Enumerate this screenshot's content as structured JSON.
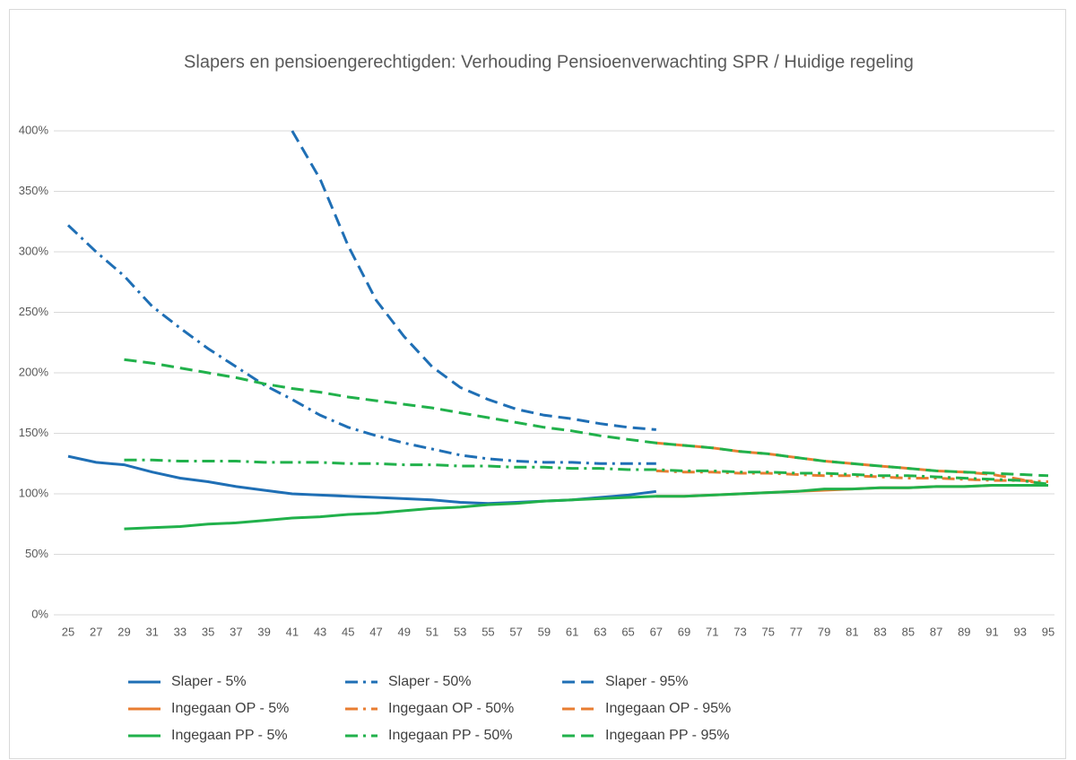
{
  "chart_data": {
    "type": "line",
    "title": "Slapers en pensioengerechtigden: Verhouding Pensioenverwachting SPR / Huidige regeling",
    "x": [
      25,
      27,
      29,
      31,
      33,
      35,
      37,
      39,
      41,
      43,
      45,
      47,
      49,
      51,
      53,
      55,
      57,
      59,
      61,
      63,
      65,
      67,
      69,
      71,
      73,
      75,
      77,
      79,
      81,
      83,
      85,
      87,
      89,
      91,
      93,
      95
    ],
    "xlim": [
      25,
      95
    ],
    "xticks": [
      25,
      27,
      29,
      31,
      33,
      35,
      37,
      39,
      41,
      43,
      45,
      47,
      49,
      51,
      53,
      55,
      57,
      59,
      61,
      63,
      65,
      67,
      69,
      71,
      73,
      75,
      77,
      79,
      81,
      83,
      85,
      87,
      89,
      91,
      93,
      95
    ],
    "ylim": [
      0,
      400
    ],
    "yticks": [
      {
        "value": 0,
        "label": "0%"
      },
      {
        "value": 50,
        "label": "50%"
      },
      {
        "value": 100,
        "label": "100%"
      },
      {
        "value": 150,
        "label": "150%"
      },
      {
        "value": 200,
        "label": "200%"
      },
      {
        "value": 250,
        "label": "250%"
      },
      {
        "value": 300,
        "label": "300%"
      },
      {
        "value": 350,
        "label": "350%"
      },
      {
        "value": 400,
        "label": "400%"
      }
    ],
    "grid": true,
    "legend": "bottom",
    "series": [
      {
        "name": "Slaper - 5%",
        "color": "#1f6fb5",
        "dash": "solid",
        "values": [
          131,
          126,
          124,
          118,
          113,
          110,
          106,
          103,
          100,
          99,
          98,
          97,
          96,
          95,
          93,
          92,
          93,
          94,
          95,
          97,
          99,
          102,
          null,
          null,
          null,
          null,
          null,
          null,
          null,
          null,
          null,
          null,
          null,
          null,
          null,
          null
        ]
      },
      {
        "name": "Slaper - 50%",
        "color": "#1f6fb5",
        "dash": "dashdot",
        "values": [
          322,
          300,
          280,
          255,
          237,
          220,
          205,
          190,
          178,
          165,
          155,
          148,
          142,
          137,
          132,
          129,
          127,
          126,
          126,
          125,
          125,
          125,
          null,
          null,
          null,
          null,
          null,
          null,
          null,
          null,
          null,
          null,
          null,
          null,
          null,
          null
        ]
      },
      {
        "name": "Slaper - 95%",
        "color": "#1f6fb5",
        "dash": "dash",
        "values": [
          null,
          null,
          null,
          null,
          null,
          null,
          null,
          null,
          400,
          360,
          305,
          260,
          230,
          205,
          188,
          178,
          170,
          165,
          162,
          158,
          155,
          153,
          null,
          null,
          null,
          null,
          null,
          null,
          null,
          null,
          null,
          null,
          null,
          null,
          null,
          null
        ]
      },
      {
        "name": "Ingegaan OP - 5%",
        "color": "#e87d31",
        "dash": "solid",
        "values": [
          null,
          null,
          null,
          null,
          null,
          null,
          null,
          null,
          null,
          null,
          null,
          null,
          null,
          null,
          null,
          null,
          null,
          null,
          null,
          null,
          null,
          98,
          98,
          99,
          100,
          101,
          102,
          103,
          104,
          105,
          105,
          106,
          106,
          107,
          107,
          107
        ]
      },
      {
        "name": "Ingegaan OP - 50%",
        "color": "#e87d31",
        "dash": "dashdot",
        "values": [
          null,
          null,
          null,
          null,
          null,
          null,
          null,
          null,
          null,
          null,
          null,
          null,
          null,
          null,
          null,
          null,
          null,
          null,
          null,
          null,
          null,
          119,
          118,
          118,
          117,
          117,
          116,
          115,
          115,
          114,
          113,
          113,
          112,
          111,
          111,
          110
        ]
      },
      {
        "name": "Ingegaan OP - 95%",
        "color": "#e87d31",
        "dash": "dash",
        "values": [
          null,
          null,
          null,
          null,
          null,
          null,
          null,
          null,
          null,
          null,
          null,
          null,
          null,
          null,
          null,
          null,
          null,
          null,
          null,
          null,
          null,
          142,
          140,
          138,
          135,
          133,
          130,
          127,
          125,
          123,
          121,
          119,
          118,
          116,
          112,
          107
        ]
      },
      {
        "name": "Ingegaan PP - 5%",
        "color": "#21b14b",
        "dash": "solid",
        "values": [
          null,
          null,
          71,
          72,
          73,
          75,
          76,
          78,
          80,
          81,
          83,
          84,
          86,
          88,
          89,
          91,
          92,
          94,
          95,
          96,
          97,
          98,
          98,
          99,
          100,
          101,
          102,
          104,
          104,
          105,
          105,
          106,
          106,
          107,
          107,
          107
        ]
      },
      {
        "name": "Ingegaan PP - 50%",
        "color": "#21b14b",
        "dash": "dashdot",
        "values": [
          null,
          null,
          128,
          128,
          127,
          127,
          127,
          126,
          126,
          126,
          125,
          125,
          124,
          124,
          123,
          123,
          122,
          122,
          121,
          121,
          120,
          120,
          119,
          119,
          118,
          118,
          117,
          117,
          116,
          115,
          115,
          114,
          113,
          112,
          111,
          108
        ]
      },
      {
        "name": "Ingegaan PP - 95%",
        "color": "#21b14b",
        "dash": "dash",
        "values": [
          null,
          null,
          211,
          208,
          204,
          200,
          196,
          191,
          187,
          184,
          180,
          177,
          174,
          171,
          167,
          163,
          159,
          155,
          152,
          148,
          145,
          142,
          140,
          138,
          135,
          133,
          130,
          127,
          125,
          123,
          121,
          119,
          118,
          117,
          116,
          115
        ]
      }
    ]
  }
}
